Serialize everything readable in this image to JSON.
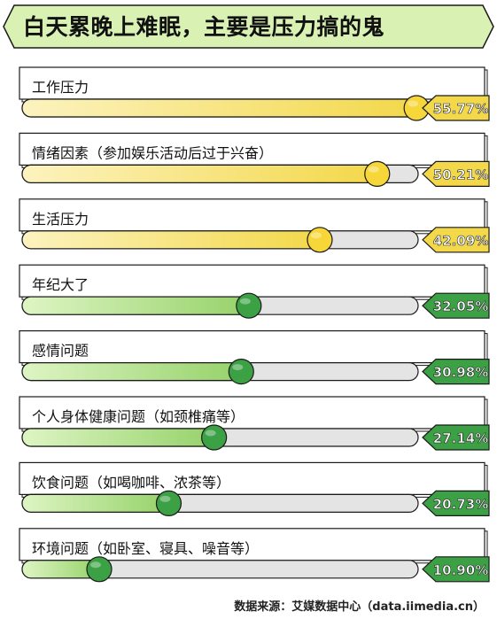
{
  "title": "白天累晚上难眠，主要是压力搞的鬼",
  "source": "数据来源：艾媒数据中心（data.iimedia.cn）",
  "colors": {
    "banner_bg": "#d9f2b4",
    "yellow_fill": "#f3d84a",
    "yellow_light": "#fcf3bf",
    "yellow_knob": "#f7d63a",
    "green_fill": "#96d26a",
    "green_light": "#def5c4",
    "green_knob": "#3ca044",
    "track": "#e4e4e4",
    "outline": "#1a1a1a"
  },
  "chart_data": {
    "type": "bar",
    "title": "白天累晚上难眠，主要是压力搞的鬼",
    "categories": [
      "工作压力",
      "情绪因素（参加娱乐活动后过于兴奋）",
      "生活压力",
      "年纪大了",
      "感情问题",
      "个人身体健康问题（如颈椎痛等）",
      "饮食问题（如喝咖啡、浓茶等）",
      "环境问题（如卧室、寝具、噪音等）"
    ],
    "values": [
      55.77,
      50.21,
      42.09,
      32.05,
      30.98,
      27.14,
      20.73,
      10.9
    ],
    "labels": [
      "55.77%",
      "50.21%",
      "42.09%",
      "32.05%",
      "30.98%",
      "27.14%",
      "20.73%",
      "10.90%"
    ],
    "highlight": [
      "yellow",
      "yellow",
      "yellow",
      "green",
      "green",
      "green",
      "green",
      "green"
    ],
    "xlim": [
      0,
      56
    ],
    "unit": "%",
    "source": "数据来源：艾媒数据中心（data.iimedia.cn）"
  }
}
